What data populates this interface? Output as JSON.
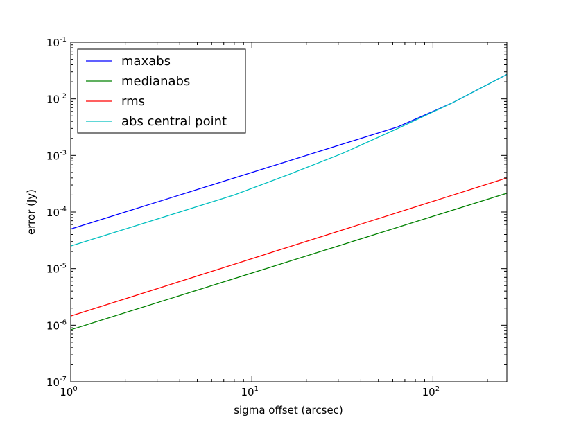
{
  "chart_data": {
    "type": "line",
    "xlabel": "sigma offset (arcsec)",
    "ylabel": "error (Jy)",
    "xscale": "log",
    "yscale": "log",
    "xlim": [
      1,
      256
    ],
    "ylim": [
      1e-07,
      0.1
    ],
    "x_ticks": [
      {
        "value": 1,
        "base": "10",
        "exp": "0"
      },
      {
        "value": 10,
        "base": "10",
        "exp": "1"
      },
      {
        "value": 100,
        "base": "10",
        "exp": "2"
      }
    ],
    "y_ticks": [
      {
        "value": 1e-07,
        "base": "10",
        "exp": "-7"
      },
      {
        "value": 1e-06,
        "base": "10",
        "exp": "-6"
      },
      {
        "value": 1e-05,
        "base": "10",
        "exp": "-5"
      },
      {
        "value": 0.0001,
        "base": "10",
        "exp": "-4"
      },
      {
        "value": 0.001,
        "base": "10",
        "exp": "-3"
      },
      {
        "value": 0.01,
        "base": "10",
        "exp": "-2"
      },
      {
        "value": 0.1,
        "base": "10",
        "exp": "-1"
      }
    ],
    "legend_position": "top-left",
    "grid": false,
    "series": [
      {
        "name": "maxabs",
        "color": "#0000ff",
        "x": [
          1,
          2,
          4,
          8,
          16,
          32,
          64,
          128,
          256
        ],
        "y": [
          5e-05,
          0.0001,
          0.0002,
          0.0004,
          0.0008,
          0.0016,
          0.0032,
          0.0085,
          0.027
        ]
      },
      {
        "name": "medianabs",
        "color": "#008000",
        "x": [
          1,
          256
        ],
        "y": [
          8.3e-07,
          0.000215
        ]
      },
      {
        "name": "rms",
        "color": "#ff0000",
        "x": [
          1,
          256
        ],
        "y": [
          1.45e-06,
          0.0004
        ]
      },
      {
        "name": "abs central point",
        "color": "#00bfbf",
        "x": [
          1,
          2,
          4,
          8,
          16,
          32,
          64,
          128,
          256
        ],
        "y": [
          2.5e-05,
          5e-05,
          0.0001,
          0.0002,
          0.00046,
          0.0011,
          0.003,
          0.0085,
          0.027
        ]
      }
    ]
  }
}
